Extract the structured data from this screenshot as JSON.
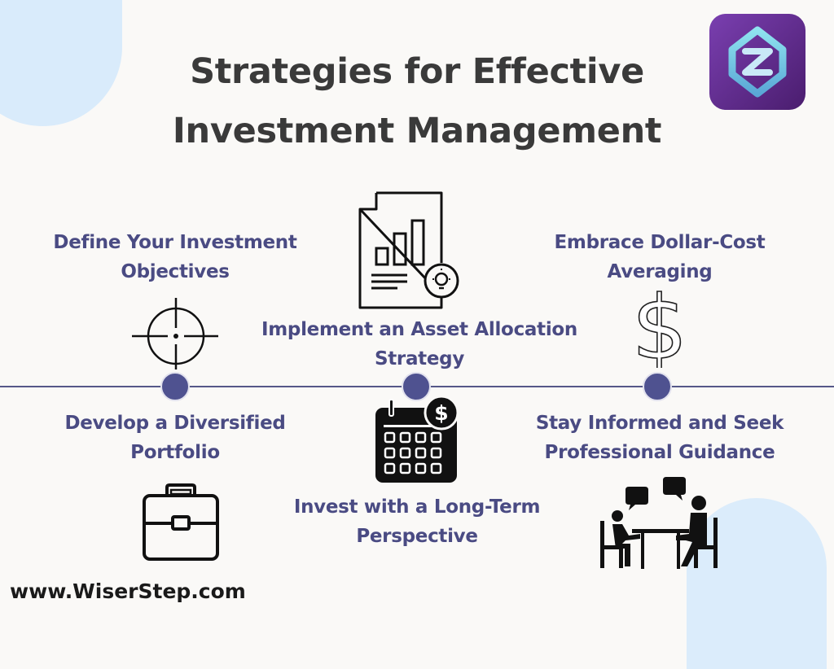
{
  "title": {
    "line1": "Strategies for Effective",
    "line2": "Investment Management"
  },
  "strategies": [
    {
      "line1": "Define Your Investment",
      "line2": "Objectives",
      "icon": "crosshair-icon"
    },
    {
      "line1": "Implement an Asset Allocation",
      "line2": "Strategy",
      "icon": "report-chart-icon"
    },
    {
      "line1": "Embrace Dollar-Cost",
      "line2": "Averaging",
      "icon": "dollar-icon"
    },
    {
      "line1": "Develop a Diversified",
      "line2": "Portfolio",
      "icon": "briefcase-icon"
    },
    {
      "line1": "Invest with a Long-Term",
      "line2": "Perspective",
      "icon": "calendar-dollar-icon"
    },
    {
      "line1": "Stay Informed and Seek",
      "line2": "Professional Guidance",
      "icon": "consultation-icon"
    }
  ],
  "footer": {
    "url": "www.WiserStep.com"
  },
  "colors": {
    "accent": "#4f5290",
    "title": "#3a3a3a",
    "background": "#faf9f7",
    "decor": "#d9ebfb"
  }
}
